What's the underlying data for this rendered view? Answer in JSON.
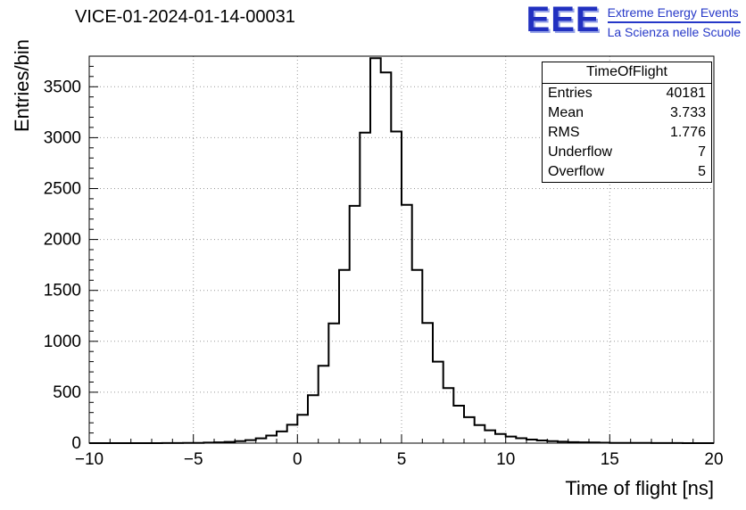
{
  "header": {
    "title": "VICE-01-2024-01-14-00031"
  },
  "logo": {
    "acronym": "EEE",
    "line1": "Extreme Energy Events",
    "line2": "La Scienza nelle Scuole",
    "color": "#2638c8"
  },
  "stats": {
    "title": "TimeOfFlight",
    "rows": [
      {
        "label": "Entries",
        "value": "40181"
      },
      {
        "label": "Mean",
        "value": "3.733"
      },
      {
        "label": "RMS",
        "value": "1.776"
      },
      {
        "label": "Underflow",
        "value": "7"
      },
      {
        "label": "Overflow",
        "value": "5"
      }
    ]
  },
  "chart_data": {
    "type": "bar",
    "subtype": "step-histogram",
    "title": "VICE-01-2024-01-14-00031",
    "xlabel": "Time of flight [ns]",
    "ylabel": "Entries/bin",
    "xlim": [
      -10,
      20
    ],
    "ylim": [
      0,
      3800
    ],
    "grid": true,
    "bin_start": -10,
    "bin_width": 0.5,
    "values": [
      0,
      0,
      0,
      0,
      0,
      0,
      0,
      1,
      1,
      2,
      3,
      5,
      8,
      12,
      19,
      30,
      47,
      74,
      115,
      180,
      278,
      470,
      760,
      1175,
      1700,
      2330,
      3050,
      3780,
      3640,
      3060,
      2340,
      1700,
      1180,
      800,
      540,
      368,
      255,
      178,
      126,
      90,
      65,
      48,
      35,
      26,
      19,
      14,
      10,
      8,
      6,
      4,
      3,
      3,
      2,
      2,
      1,
      1,
      1,
      0,
      0,
      0
    ],
    "xticks": [
      -10,
      -5,
      0,
      5,
      10,
      15,
      20
    ],
    "xtick_labels": [
      "−10",
      "−5",
      "0",
      "5",
      "10",
      "15",
      "20"
    ],
    "xminor": 1,
    "yticks": [
      0,
      500,
      1000,
      1500,
      2000,
      2500,
      3000,
      3500
    ],
    "ytick_labels": [
      "0",
      "500",
      "1000",
      "1500",
      "2000",
      "2500",
      "3000",
      "3500"
    ],
    "yminor": 100,
    "colors": {
      "line": "#000000",
      "grid": "#999999",
      "frame": "#000000"
    }
  }
}
